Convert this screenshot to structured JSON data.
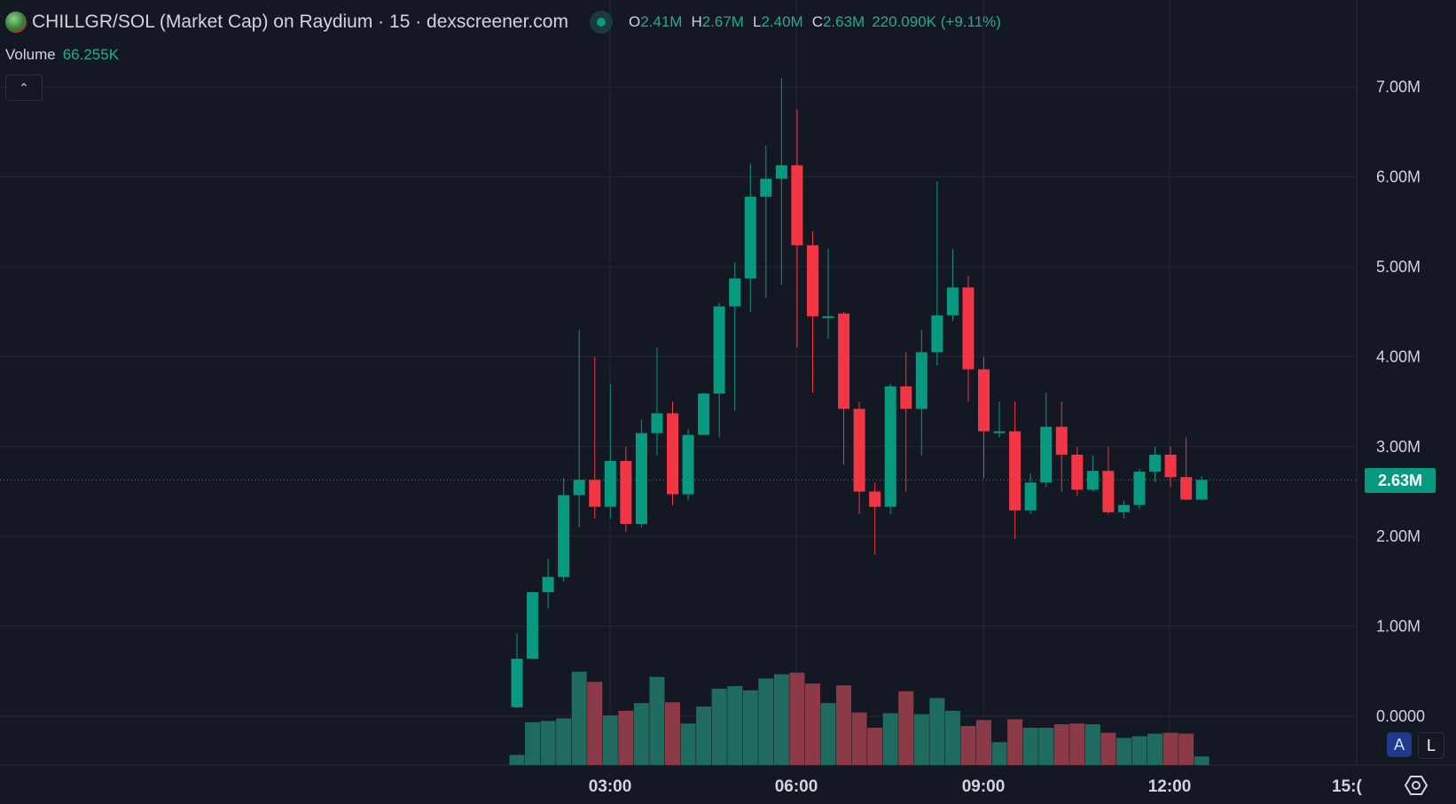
{
  "header": {
    "title": "CHILLGR/SOL (Market Cap) on Raydium · 15 · dexscreener.com",
    "ohlc": [
      {
        "key": "O",
        "value": "2.41M"
      },
      {
        "key": "H",
        "value": "2.67M"
      },
      {
        "key": "L",
        "value": "2.40M"
      },
      {
        "key": "C",
        "value": "2.63M"
      }
    ],
    "change": "220.090K (+9.11%)",
    "status_icon": "market-open-dot"
  },
  "volume": {
    "label": "Volume",
    "value": "66.255K"
  },
  "controls": {
    "collapse_icon": "chevron-up",
    "auto_label": "A",
    "log_label": "L",
    "settings_icon": "gear"
  },
  "current_price_label": "2.63M",
  "colors": {
    "background": "#141823",
    "up": "#089981",
    "down": "#f23645",
    "up_volume": "#1f6b5f",
    "down_volume": "#8c3a47",
    "grid": "#232734"
  },
  "chart_data": {
    "type": "candlestick",
    "interval": "15",
    "y_ticks": [
      "0.0000",
      "1.00M",
      "2.00M",
      "3.00M",
      "4.00M",
      "5.00M",
      "6.00M",
      "7.00M"
    ],
    "x_ticks": [
      "03:00",
      "06:00",
      "09:00",
      "12:00",
      "15:("
    ],
    "first_candle_time": "01:30",
    "current_price": 2.63,
    "candles": [
      [
        0.1,
        0.92,
        0.09,
        0.64,
        79
      ],
      [
        0.64,
        1.38,
        0.64,
        1.38,
        333
      ],
      [
        1.38,
        1.75,
        1.2,
        1.55,
        343
      ],
      [
        1.55,
        2.65,
        1.5,
        2.46,
        363
      ],
      [
        2.46,
        4.3,
        2.1,
        2.63,
        726
      ],
      [
        2.63,
        4.0,
        2.2,
        2.33,
        647
      ],
      [
        2.33,
        3.7,
        2.2,
        2.84,
        386
      ],
      [
        2.84,
        3.0,
        2.05,
        2.14,
        422
      ],
      [
        2.14,
        3.3,
        2.1,
        3.15,
        482
      ],
      [
        3.15,
        4.1,
        2.9,
        3.37,
        686
      ],
      [
        3.37,
        3.5,
        2.35,
        2.47,
        488
      ],
      [
        2.47,
        3.2,
        2.4,
        3.13,
        323
      ],
      [
        3.13,
        3.6,
        3.13,
        3.59,
        455
      ],
      [
        3.59,
        4.6,
        3.1,
        4.56,
        594
      ],
      [
        4.56,
        5.05,
        3.4,
        4.87,
        614
      ],
      [
        4.87,
        6.15,
        4.5,
        5.78,
        581
      ],
      [
        5.78,
        6.35,
        4.65,
        5.98,
        673
      ],
      [
        5.98,
        7.1,
        4.8,
        6.13,
        706
      ],
      [
        6.13,
        6.75,
        4.1,
        5.24,
        719
      ],
      [
        5.24,
        5.4,
        3.6,
        4.45,
        634
      ],
      [
        4.45,
        5.2,
        4.2,
        4.45,
        482
      ],
      [
        4.48,
        4.5,
        2.8,
        3.42,
        620
      ],
      [
        3.42,
        3.5,
        2.25,
        2.5,
        409
      ],
      [
        2.5,
        2.6,
        1.8,
        2.33,
        290
      ],
      [
        2.33,
        3.7,
        2.25,
        3.67,
        403
      ],
      [
        3.67,
        4.05,
        2.5,
        3.42,
        574
      ],
      [
        3.42,
        4.3,
        2.9,
        4.05,
        396
      ],
      [
        4.05,
        5.95,
        3.9,
        4.46,
        521
      ],
      [
        4.46,
        5.2,
        4.4,
        4.77,
        422
      ],
      [
        4.77,
        4.9,
        3.5,
        3.86,
        304
      ],
      [
        3.86,
        4.0,
        2.65,
        3.17,
        350
      ],
      [
        3.17,
        3.5,
        3.1,
        3.17,
        178
      ],
      [
        3.17,
        3.5,
        1.97,
        2.29,
        356
      ],
      [
        2.29,
        2.7,
        2.25,
        2.6,
        290
      ],
      [
        2.6,
        3.6,
        2.55,
        3.22,
        290
      ],
      [
        3.22,
        3.5,
        2.5,
        2.91,
        317
      ],
      [
        2.91,
        3.0,
        2.45,
        2.52,
        323
      ],
      [
        2.52,
        2.9,
        2.5,
        2.73,
        317
      ],
      [
        2.73,
        3.0,
        2.25,
        2.27,
        251
      ],
      [
        2.27,
        2.4,
        2.2,
        2.35,
        211
      ],
      [
        2.35,
        2.75,
        2.3,
        2.72,
        224
      ],
      [
        2.72,
        3.0,
        2.6,
        2.91,
        244
      ],
      [
        2.91,
        3.0,
        2.55,
        2.66,
        251
      ],
      [
        2.66,
        3.1,
        2.4,
        2.41,
        244
      ],
      [
        2.41,
        2.67,
        2.4,
        2.63,
        66.255
      ]
    ]
  }
}
